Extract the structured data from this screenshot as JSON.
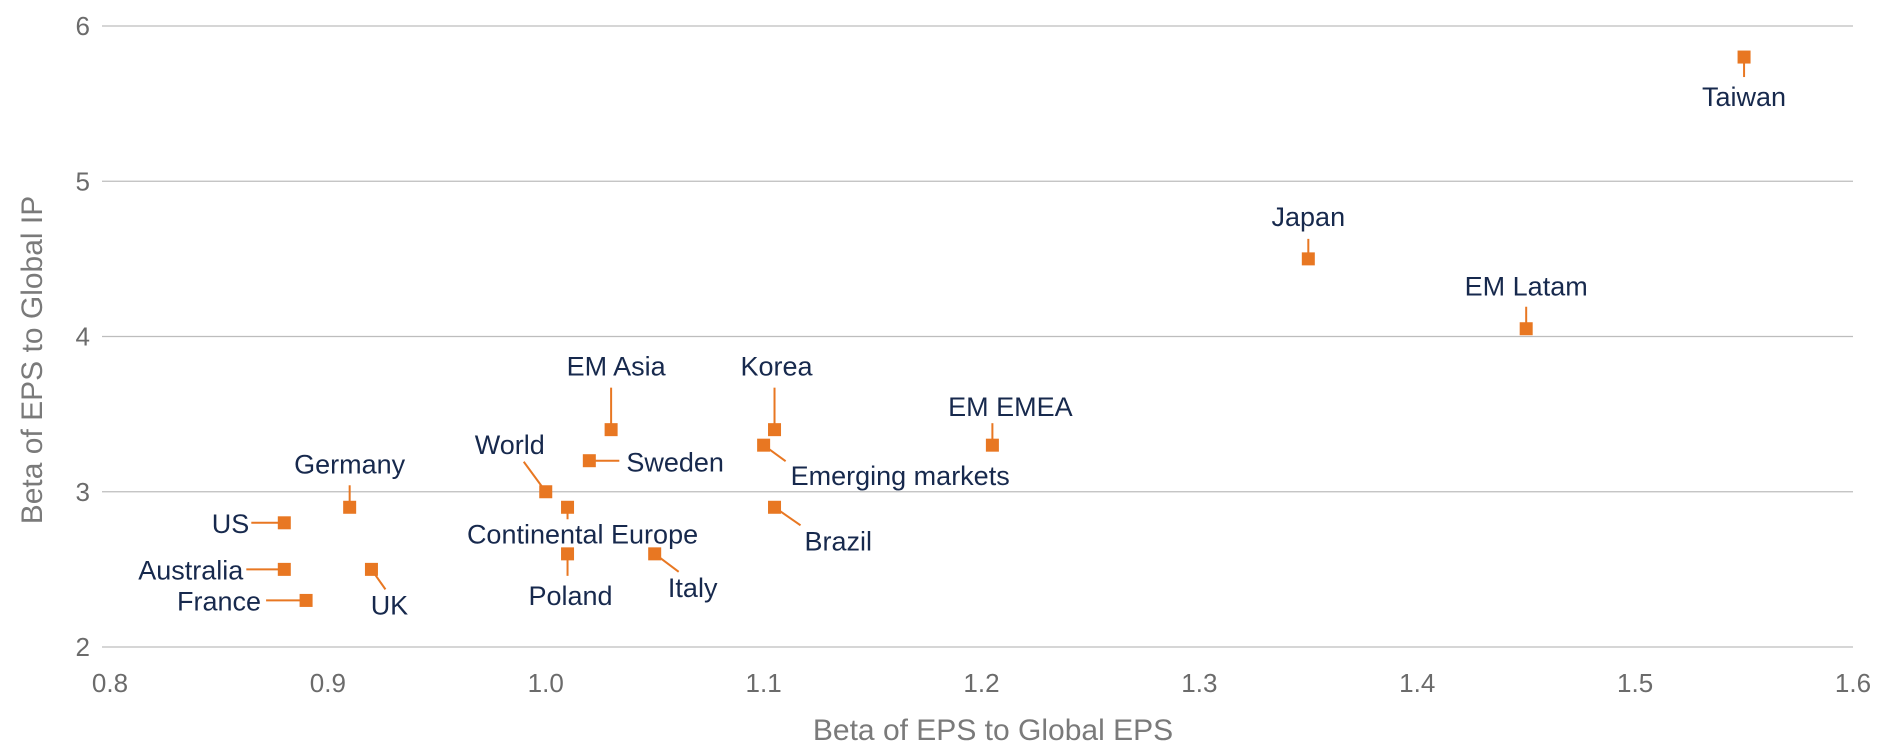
{
  "chart_data": {
    "type": "scatter",
    "title": "",
    "xlabel": "Beta of EPS to Global EPS",
    "ylabel": "Beta of EPS to Global IP",
    "xlim": [
      0.8,
      1.6
    ],
    "ylim": [
      2,
      6
    ],
    "x_ticks": [
      0.8,
      0.9,
      1.0,
      1.1,
      1.2,
      1.3,
      1.4,
      1.5,
      1.6
    ],
    "x_tick_labels": [
      "0.8",
      "0.9",
      "1.0",
      "1.1",
      "1.2",
      "1.3",
      "1.4",
      "1.5",
      "1.6"
    ],
    "y_ticks": [
      2,
      3,
      4,
      5,
      6
    ],
    "y_tick_labels": [
      "2",
      "3",
      "4",
      "5",
      "6"
    ],
    "grid": "horizontal",
    "marker": "square",
    "marker_color": "#e87722",
    "label_color": "#17294d",
    "points": [
      {
        "label": "Taiwan",
        "x": 1.55,
        "y": 5.8
      },
      {
        "label": "Japan",
        "x": 1.35,
        "y": 4.5
      },
      {
        "label": "EM Latam",
        "x": 1.45,
        "y": 4.05
      },
      {
        "label": "EM Asia",
        "x": 1.03,
        "y": 3.4
      },
      {
        "label": "Korea",
        "x": 1.105,
        "y": 3.4
      },
      {
        "label": "EM EMEA",
        "x": 1.205,
        "y": 3.3
      },
      {
        "label": "World",
        "x": 1.0,
        "y": 3.0
      },
      {
        "label": "Sweden",
        "x": 1.02,
        "y": 3.2
      },
      {
        "label": "Emerging markets",
        "x": 1.1,
        "y": 3.3
      },
      {
        "label": "Germany",
        "x": 0.91,
        "y": 2.9
      },
      {
        "label": "US",
        "x": 0.88,
        "y": 2.8
      },
      {
        "label": "Continental Europe",
        "x": 1.01,
        "y": 2.9
      },
      {
        "label": "Brazil",
        "x": 1.105,
        "y": 2.9
      },
      {
        "label": "Australia",
        "x": 0.88,
        "y": 2.5
      },
      {
        "label": "UK",
        "x": 0.92,
        "y": 2.5
      },
      {
        "label": "Poland",
        "x": 1.01,
        "y": 2.6
      },
      {
        "label": "Italy",
        "x": 1.05,
        "y": 2.6
      },
      {
        "label": "France",
        "x": 0.89,
        "y": 2.3
      }
    ]
  }
}
